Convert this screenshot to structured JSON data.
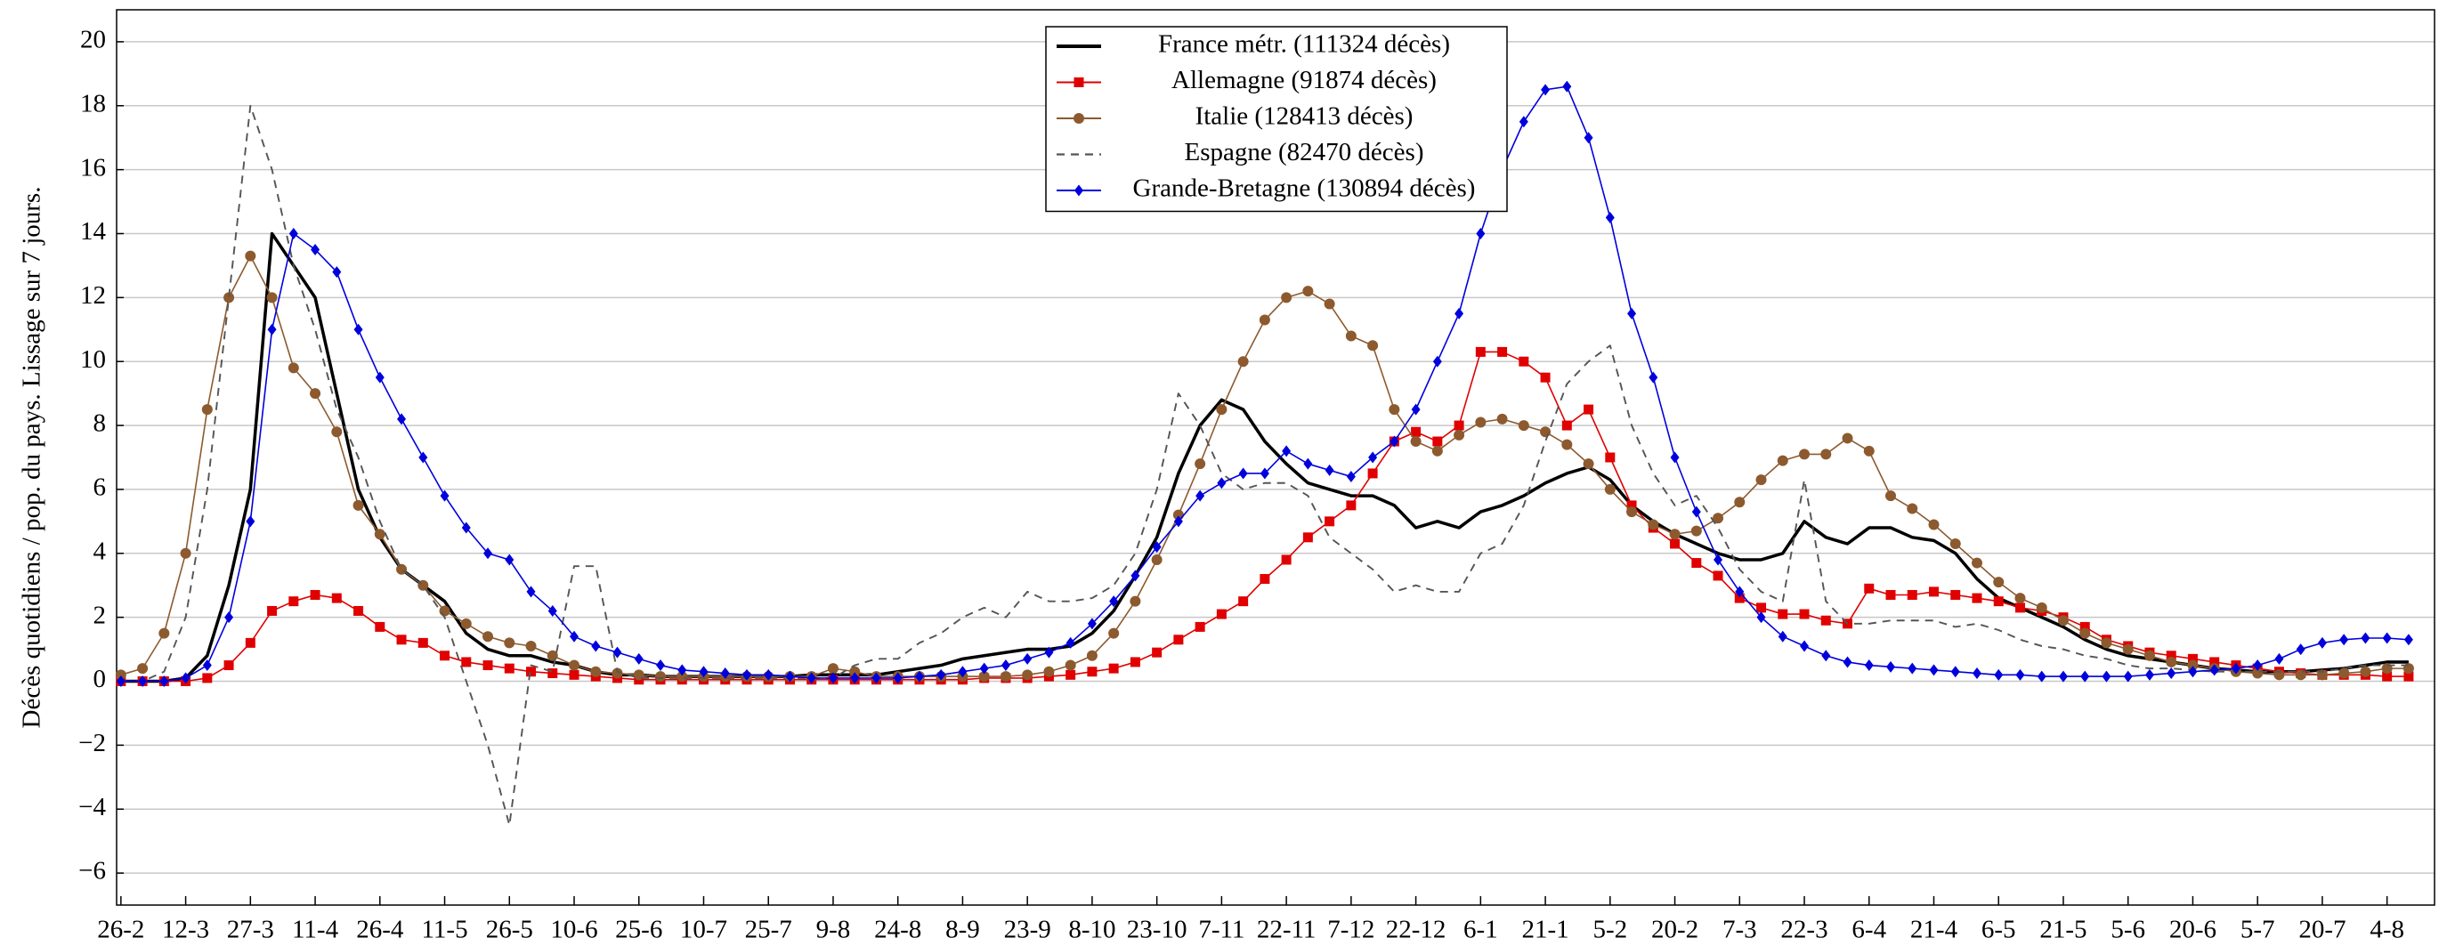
{
  "chart_data": {
    "type": "line",
    "y_label": "Décès quotidiens / pop. du pays. Lissage sur 7 jours.",
    "grid": true,
    "legend": "top-center",
    "xlim": [
      -1,
      536
    ],
    "ylim": [
      -7,
      21
    ],
    "yticks": [
      {
        "value": -6,
        "label": "−6"
      },
      {
        "value": -4,
        "label": "−4"
      },
      {
        "value": -2,
        "label": "−2"
      },
      0,
      2,
      4,
      6,
      8,
      10,
      12,
      14,
      16,
      18,
      20
    ],
    "xticks": [
      {
        "value": 0,
        "label": "26-2"
      },
      {
        "value": 15,
        "label": "12-3"
      },
      {
        "value": 30,
        "label": "27-3"
      },
      {
        "value": 45,
        "label": "11-4"
      },
      {
        "value": 60,
        "label": "26-4"
      },
      {
        "value": 75,
        "label": "11-5"
      },
      {
        "value": 90,
        "label": "26-5"
      },
      {
        "value": 105,
        "label": "10-6"
      },
      {
        "value": 120,
        "label": "25-6"
      },
      {
        "value": 135,
        "label": "10-7"
      },
      {
        "value": 150,
        "label": "25-7"
      },
      {
        "value": 165,
        "label": "9-8"
      },
      {
        "value": 180,
        "label": "24-8"
      },
      {
        "value": 195,
        "label": "8-9"
      },
      {
        "value": 210,
        "label": "23-9"
      },
      {
        "value": 225,
        "label": "8-10"
      },
      {
        "value": 240,
        "label": "23-10"
      },
      {
        "value": 255,
        "label": "7-11"
      },
      {
        "value": 270,
        "label": "22-11"
      },
      {
        "value": 285,
        "label": "7-12"
      },
      {
        "value": 300,
        "label": "22-12"
      },
      {
        "value": 315,
        "label": "6-1"
      },
      {
        "value": 330,
        "label": "21-1"
      },
      {
        "value": 345,
        "label": "5-2"
      },
      {
        "value": 360,
        "label": "20-2"
      },
      {
        "value": 375,
        "label": "7-3"
      },
      {
        "value": 390,
        "label": "22-3"
      },
      {
        "value": 405,
        "label": "6-4"
      },
      {
        "value": 420,
        "label": "21-4"
      },
      {
        "value": 435,
        "label": "6-5"
      },
      {
        "value": 450,
        "label": "21-5"
      },
      {
        "value": 465,
        "label": "5-6"
      },
      {
        "value": 480,
        "label": "20-6"
      },
      {
        "value": 495,
        "label": "5-7"
      },
      {
        "value": 510,
        "label": "20-7"
      },
      {
        "value": 525,
        "label": "4-8"
      }
    ],
    "x": [
      0,
      5,
      10,
      15,
      20,
      25,
      30,
      35,
      40,
      45,
      50,
      55,
      60,
      65,
      70,
      75,
      80,
      85,
      90,
      95,
      100,
      105,
      110,
      115,
      120,
      125,
      130,
      135,
      140,
      145,
      150,
      155,
      160,
      165,
      170,
      175,
      180,
      185,
      190,
      195,
      200,
      205,
      210,
      215,
      220,
      225,
      230,
      235,
      240,
      245,
      250,
      255,
      260,
      265,
      270,
      275,
      280,
      285,
      290,
      295,
      300,
      305,
      310,
      315,
      320,
      325,
      330,
      335,
      340,
      345,
      350,
      355,
      360,
      365,
      370,
      375,
      380,
      385,
      390,
      395,
      400,
      405,
      410,
      415,
      420,
      425,
      430,
      435,
      440,
      445,
      450,
      455,
      460,
      465,
      470,
      475,
      480,
      485,
      490,
      495,
      500,
      505,
      510,
      515,
      520,
      525,
      530
    ],
    "series": [
      {
        "name": "France métr. (111324 décès)",
        "color": "#000000",
        "marker": "none",
        "dash": false,
        "width": 2.2,
        "values": [
          0,
          0,
          0,
          0.1,
          0.8,
          3,
          6,
          14,
          13,
          12,
          9,
          6,
          4.5,
          3.5,
          3,
          2.5,
          1.5,
          1,
          0.8,
          0.8,
          0.6,
          0.5,
          0.3,
          0.2,
          0.2,
          0.15,
          0.15,
          0.15,
          0.15,
          0.15,
          0.15,
          0.15,
          0.2,
          0.2,
          0.2,
          0.2,
          0.3,
          0.4,
          0.5,
          0.7,
          0.8,
          0.9,
          1,
          1,
          1.1,
          1.5,
          2.2,
          3.3,
          4.5,
          6.5,
          8,
          8.8,
          8.5,
          7.5,
          6.8,
          6.2,
          6,
          5.8,
          5.8,
          5.5,
          4.8,
          5,
          4.8,
          5.3,
          5.5,
          5.8,
          6.2,
          6.5,
          6.7,
          6.3,
          5.5,
          5,
          4.6,
          4.3,
          4,
          3.8,
          3.8,
          4,
          5,
          4.5,
          4.3,
          4.8,
          4.8,
          4.5,
          4.4,
          4,
          3.2,
          2.6,
          2.3,
          2,
          1.7,
          1.3,
          1,
          0.8,
          0.7,
          0.6,
          0.5,
          0.4,
          0.35,
          0.3,
          0.3,
          0.3,
          0.35,
          0.4,
          0.5,
          0.6,
          0.6
        ]
      },
      {
        "name": "Allemagne (91874 décès)",
        "color": "#e00000",
        "marker": "square",
        "dash": false,
        "width": 1,
        "values": [
          0,
          0,
          0,
          0,
          0.1,
          0.5,
          1.2,
          2.2,
          2.5,
          2.7,
          2.6,
          2.2,
          1.7,
          1.3,
          1.2,
          0.8,
          0.6,
          0.5,
          0.4,
          0.3,
          0.25,
          0.2,
          0.15,
          0.1,
          0.05,
          0.05,
          0.05,
          0.05,
          0.05,
          0.05,
          0.05,
          0.05,
          0.05,
          0.05,
          0.05,
          0.05,
          0.05,
          0.05,
          0.05,
          0.05,
          0.1,
          0.1,
          0.1,
          0.15,
          0.2,
          0.3,
          0.4,
          0.6,
          0.9,
          1.3,
          1.7,
          2.1,
          2.5,
          3.2,
          3.8,
          4.5,
          5,
          5.5,
          6.5,
          7.5,
          7.8,
          7.5,
          8,
          10.3,
          10.3,
          10,
          9.5,
          8,
          8.5,
          7,
          5.5,
          4.8,
          4.3,
          3.7,
          3.3,
          2.6,
          2.3,
          2.1,
          2.1,
          1.9,
          1.8,
          2.9,
          2.7,
          2.7,
          2.8,
          2.7,
          2.6,
          2.5,
          2.3,
          2.2,
          2,
          1.7,
          1.3,
          1.1,
          0.9,
          0.8,
          0.7,
          0.6,
          0.5,
          0.4,
          0.3,
          0.25,
          0.2,
          0.2,
          0.2,
          0.15,
          0.15
        ]
      },
      {
        "name": "Italie (128413 décès)",
        "color": "#8c5a2e",
        "marker": "circle",
        "dash": false,
        "width": 1,
        "values": [
          0.2,
          0.4,
          1.5,
          4,
          8.5,
          12,
          13.3,
          12,
          9.8,
          9,
          7.8,
          5.5,
          4.6,
          3.5,
          3,
          2.2,
          1.8,
          1.4,
          1.2,
          1.1,
          0.8,
          0.5,
          0.3,
          0.25,
          0.2,
          0.15,
          0.15,
          0.15,
          0.15,
          0.15,
          0.15,
          0.15,
          0.15,
          0.4,
          0.3,
          0.15,
          0.15,
          0.15,
          0.15,
          0.15,
          0.15,
          0.15,
          0.2,
          0.3,
          0.5,
          0.8,
          1.5,
          2.5,
          3.8,
          5.2,
          6.8,
          8.5,
          10,
          11.3,
          12,
          12.2,
          11.8,
          10.8,
          10.5,
          8.5,
          7.5,
          7.2,
          7.7,
          8.1,
          8.2,
          8,
          7.8,
          7.4,
          6.8,
          6,
          5.3,
          4.9,
          4.6,
          4.7,
          5.1,
          5.6,
          6.3,
          6.9,
          7.1,
          7.1,
          7.6,
          7.2,
          5.8,
          5.4,
          4.9,
          4.3,
          3.7,
          3.1,
          2.6,
          2.3,
          1.9,
          1.5,
          1.2,
          1,
          0.8,
          0.6,
          0.5,
          0.4,
          0.3,
          0.25,
          0.2,
          0.2,
          0.2,
          0.25,
          0.3,
          0.4,
          0.4
        ]
      },
      {
        "name": "Espagne (82470 décès)",
        "color": "#555555",
        "marker": "none",
        "dash": true,
        "width": 1.2,
        "values": [
          0,
          0,
          0.3,
          2,
          6,
          12,
          18,
          16,
          13,
          11,
          8.5,
          7,
          5,
          3.5,
          3,
          2,
          0,
          -2,
          -4.5,
          0.5,
          0.3,
          3.6,
          3.6,
          0.3,
          0.1,
          0.1,
          0.1,
          0.1,
          0.1,
          0.1,
          0.1,
          0.1,
          0.1,
          0.1,
          0.5,
          0.7,
          0.7,
          1.2,
          1.5,
          2,
          2.3,
          2,
          2.8,
          2.5,
          2.5,
          2.6,
          3,
          4,
          6,
          9,
          8,
          6.5,
          6,
          6.2,
          6.2,
          5.8,
          4.5,
          4,
          3.5,
          2.8,
          3,
          2.8,
          2.8,
          4,
          4.3,
          5.5,
          7.5,
          9.3,
          10,
          10.5,
          8,
          6.5,
          5.5,
          5.8,
          4.8,
          3.5,
          2.8,
          2.5,
          6.3,
          2.5,
          1.8,
          1.8,
          1.9,
          1.9,
          1.9,
          1.7,
          1.8,
          1.6,
          1.3,
          1.1,
          1,
          0.8,
          0.7,
          0.5,
          0.4,
          0.4,
          0.35,
          0.3,
          0.3,
          0.3,
          0.3,
          0.3,
          0.3,
          0.4,
          0.5,
          0.5,
          0.5
        ]
      },
      {
        "name": "Grande-Bretagne (130894 décès)",
        "color": "#0000dd",
        "marker": "diamond",
        "dash": false,
        "width": 1,
        "values": [
          0,
          0,
          0,
          0.1,
          0.5,
          2,
          5,
          11,
          14,
          13.5,
          12.8,
          11,
          9.5,
          8.2,
          7,
          5.8,
          4.8,
          4,
          3.8,
          2.8,
          2.2,
          1.4,
          1.1,
          0.9,
          0.7,
          0.5,
          0.35,
          0.3,
          0.25,
          0.2,
          0.2,
          0.15,
          0.1,
          0.1,
          0.1,
          0.1,
          0.1,
          0.15,
          0.2,
          0.3,
          0.4,
          0.5,
          0.7,
          0.9,
          1.2,
          1.8,
          2.5,
          3.3,
          4.2,
          5,
          5.8,
          6.2,
          6.5,
          6.5,
          7.2,
          6.8,
          6.6,
          6.4,
          7,
          7.5,
          8.5,
          10,
          11.5,
          14,
          16,
          17.5,
          18.5,
          18.6,
          17,
          14.5,
          11.5,
          9.5,
          7,
          5.3,
          3.8,
          2.8,
          2,
          1.4,
          1.1,
          0.8,
          0.6,
          0.5,
          0.45,
          0.4,
          0.35,
          0.3,
          0.25,
          0.2,
          0.2,
          0.15,
          0.15,
          0.15,
          0.15,
          0.15,
          0.2,
          0.25,
          0.3,
          0.35,
          0.4,
          0.5,
          0.7,
          1,
          1.2,
          1.3,
          1.35,
          1.35,
          1.3
        ]
      }
    ]
  }
}
